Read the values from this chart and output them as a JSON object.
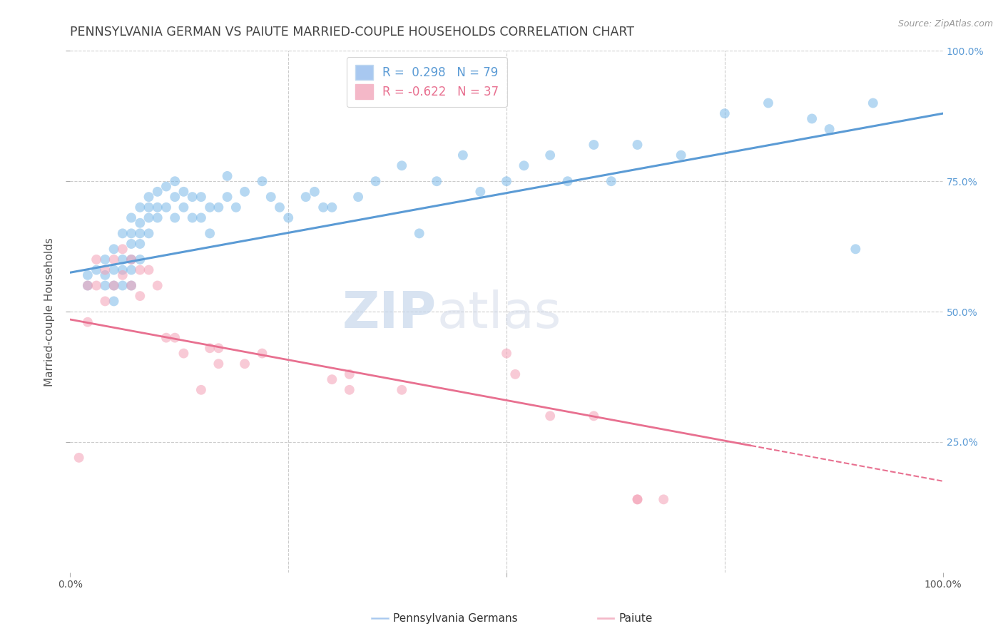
{
  "title": "PENNSYLVANIA GERMAN VS PAIUTE MARRIED-COUPLE HOUSEHOLDS CORRELATION CHART",
  "source_text": "Source: ZipAtlas.com",
  "ylabel": "Married-couple Households",
  "xlim": [
    0.0,
    1.0
  ],
  "ylim": [
    0.0,
    1.0
  ],
  "watermark_zip": "ZIP",
  "watermark_atlas": "atlas",
  "legend_blue_label": "R =  0.298   N = 79",
  "legend_pink_label": "R = -0.622   N = 37",
  "blue_color": "#7ab8e8",
  "pink_color": "#f4a0b5",
  "blue_line_color": "#5b9bd5",
  "pink_line_color": "#e87090",
  "grid_color": "#cccccc",
  "background_color": "#ffffff",
  "title_color": "#444444",
  "title_fontsize": 12.5,
  "axis_label_fontsize": 11,
  "tick_fontsize": 10,
  "scatter_alpha": 0.55,
  "scatter_size": 100,
  "blue_line_x": [
    0.0,
    1.0
  ],
  "blue_line_y": [
    0.575,
    0.88
  ],
  "pink_line_x": [
    0.0,
    1.0
  ],
  "pink_line_y": [
    0.485,
    0.175
  ],
  "blue_scatter_x": [
    0.02,
    0.02,
    0.03,
    0.04,
    0.04,
    0.04,
    0.05,
    0.05,
    0.05,
    0.05,
    0.06,
    0.06,
    0.06,
    0.06,
    0.07,
    0.07,
    0.07,
    0.07,
    0.07,
    0.07,
    0.08,
    0.08,
    0.08,
    0.08,
    0.08,
    0.09,
    0.09,
    0.09,
    0.09,
    0.1,
    0.1,
    0.1,
    0.11,
    0.11,
    0.12,
    0.12,
    0.12,
    0.13,
    0.13,
    0.14,
    0.14,
    0.15,
    0.15,
    0.16,
    0.16,
    0.17,
    0.18,
    0.18,
    0.19,
    0.2,
    0.22,
    0.23,
    0.24,
    0.25,
    0.27,
    0.28,
    0.29,
    0.3,
    0.33,
    0.35,
    0.38,
    0.4,
    0.42,
    0.45,
    0.47,
    0.5,
    0.52,
    0.55,
    0.57,
    0.6,
    0.62,
    0.65,
    0.7,
    0.75,
    0.8,
    0.85,
    0.87,
    0.9,
    0.92
  ],
  "blue_scatter_y": [
    0.57,
    0.55,
    0.58,
    0.6,
    0.57,
    0.55,
    0.62,
    0.58,
    0.55,
    0.52,
    0.65,
    0.6,
    0.58,
    0.55,
    0.68,
    0.65,
    0.63,
    0.6,
    0.58,
    0.55,
    0.7,
    0.67,
    0.65,
    0.63,
    0.6,
    0.72,
    0.7,
    0.68,
    0.65,
    0.73,
    0.7,
    0.68,
    0.74,
    0.7,
    0.75,
    0.72,
    0.68,
    0.73,
    0.7,
    0.72,
    0.68,
    0.72,
    0.68,
    0.7,
    0.65,
    0.7,
    0.76,
    0.72,
    0.7,
    0.73,
    0.75,
    0.72,
    0.7,
    0.68,
    0.72,
    0.73,
    0.7,
    0.7,
    0.72,
    0.75,
    0.78,
    0.65,
    0.75,
    0.8,
    0.73,
    0.75,
    0.78,
    0.8,
    0.75,
    0.82,
    0.75,
    0.82,
    0.8,
    0.88,
    0.9,
    0.87,
    0.85,
    0.62,
    0.9
  ],
  "pink_scatter_x": [
    0.01,
    0.02,
    0.02,
    0.03,
    0.03,
    0.04,
    0.04,
    0.05,
    0.05,
    0.06,
    0.06,
    0.07,
    0.07,
    0.08,
    0.08,
    0.09,
    0.1,
    0.11,
    0.12,
    0.13,
    0.15,
    0.16,
    0.17,
    0.17,
    0.2,
    0.22,
    0.3,
    0.32,
    0.32,
    0.38,
    0.5,
    0.51,
    0.55,
    0.6,
    0.65,
    0.65,
    0.68
  ],
  "pink_scatter_y": [
    0.22,
    0.55,
    0.48,
    0.6,
    0.55,
    0.58,
    0.52,
    0.6,
    0.55,
    0.62,
    0.57,
    0.6,
    0.55,
    0.58,
    0.53,
    0.58,
    0.55,
    0.45,
    0.45,
    0.42,
    0.35,
    0.43,
    0.43,
    0.4,
    0.4,
    0.42,
    0.37,
    0.38,
    0.35,
    0.35,
    0.42,
    0.38,
    0.3,
    0.3,
    0.14,
    0.14,
    0.14
  ]
}
